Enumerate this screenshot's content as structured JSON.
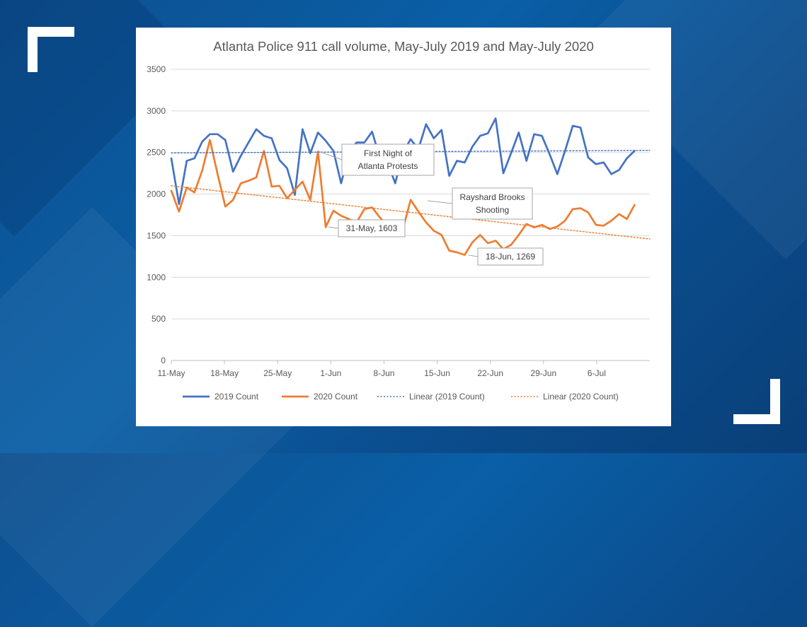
{
  "chart_data": {
    "type": "line",
    "title": "Atlanta Police 911 call volume, May-July 2019 and May-July 2020",
    "xlabel": "",
    "ylabel": "",
    "ylim": [
      0,
      3500
    ],
    "y_ticks": [
      0,
      500,
      1000,
      1500,
      2000,
      2500,
      3000,
      3500
    ],
    "x_ticks": [
      "11-May",
      "18-May",
      "25-May",
      "1-Jun",
      "8-Jun",
      "15-Jun",
      "22-Jun",
      "29-Jun",
      "6-Jul"
    ],
    "x_range_days": [
      0,
      63
    ],
    "grid": "horizontal",
    "legend_position": "bottom",
    "series": [
      {
        "name": "2019 Count",
        "color": "#4472c4",
        "style": "solid",
        "values": [
          2430,
          1880,
          2400,
          2430,
          2630,
          2720,
          2720,
          2650,
          2270,
          2460,
          2620,
          2780,
          2700,
          2670,
          2410,
          2310,
          1990,
          2780,
          2490,
          2740,
          2640,
          2520,
          2130,
          2500,
          2620,
          2620,
          2750,
          2440,
          2380,
          2130,
          2500,
          2660,
          2540,
          2840,
          2670,
          2770,
          2220,
          2400,
          2380,
          2570,
          2700,
          2730,
          2910,
          2250,
          2490,
          2740,
          2400,
          2720,
          2700,
          2480,
          2240,
          2520,
          2820,
          2800,
          2440,
          2360,
          2380,
          2240,
          2290,
          2430,
          2520
        ]
      },
      {
        "name": "2020 Count",
        "color": "#ed7d31",
        "style": "solid",
        "values": [
          2040,
          1790,
          2080,
          2020,
          2280,
          2650,
          2240,
          1850,
          1930,
          2130,
          2160,
          2200,
          2520,
          2090,
          2100,
          1950,
          2050,
          2150,
          1930,
          2510,
          1603,
          1800,
          1740,
          1700,
          1660,
          1820,
          1840,
          1720,
          1620,
          1560,
          1580,
          1930,
          1790,
          1660,
          1560,
          1510,
          1320,
          1300,
          1269,
          1420,
          1510,
          1410,
          1440,
          1340,
          1390,
          1510,
          1640,
          1600,
          1630,
          1580,
          1610,
          1680,
          1820,
          1830,
          1780,
          1630,
          1620,
          1680,
          1760,
          1700,
          1870
        ]
      },
      {
        "name": "Linear (2019 Count)",
        "color": "#4472c4",
        "style": "dotted",
        "values": [
          2495,
          2525
        ]
      },
      {
        "name": "Linear (2020 Count)",
        "color": "#ed7d31",
        "style": "dotted",
        "values": [
          2100,
          1460
        ]
      }
    ],
    "annotations": [
      {
        "lines": [
          "First Night of",
          "Atlanta Protests"
        ]
      },
      {
        "lines": [
          "31-May, 1603"
        ]
      },
      {
        "lines": [
          "Rayshard Brooks",
          "Shooting"
        ]
      },
      {
        "lines": [
          "18-Jun, 1269"
        ]
      }
    ]
  }
}
